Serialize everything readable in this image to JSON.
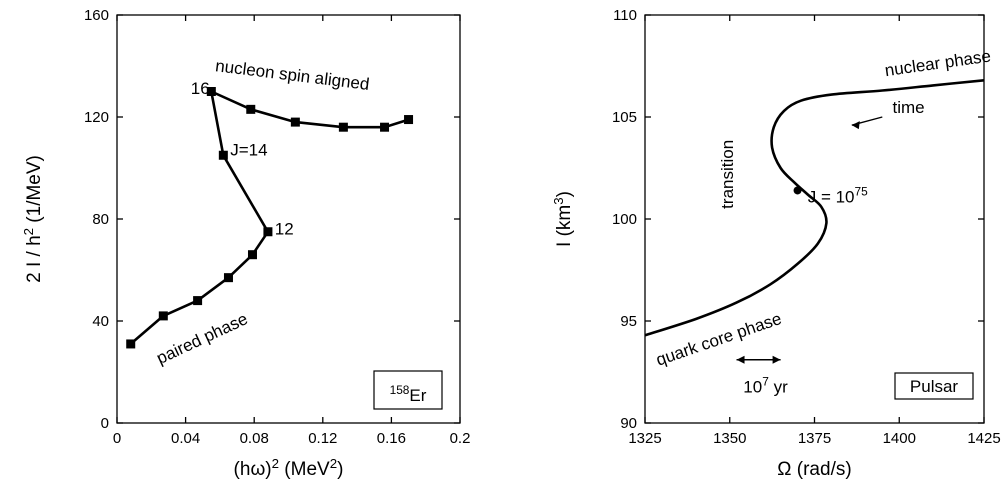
{
  "chart_data": [
    {
      "type": "line",
      "xlabel": "(hω)",
      "xlabel_sup": "2",
      "xlabel_unit": " (MeV",
      "xlabel_unit_sup": "2",
      "xlabel_tail": ")",
      "ylabel": "2 I / h",
      "ylabel_sup": "2",
      "ylabel_unit": " (1/MeV)",
      "xlim": [
        0,
        0.2
      ],
      "ylim": [
        0,
        160
      ],
      "xticks": [
        {
          "value": 0,
          "label": "0"
        },
        {
          "value": 0.04,
          "label": "0.04"
        },
        {
          "value": 0.08,
          "label": "0.08"
        },
        {
          "value": 0.12,
          "label": "0.12"
        },
        {
          "value": 0.16,
          "label": "0.16"
        },
        {
          "value": 0.2,
          "label": "0.2"
        }
      ],
      "yticks": [
        {
          "value": 0,
          "label": "0"
        },
        {
          "value": 40,
          "label": "40"
        },
        {
          "value": 80,
          "label": "80"
        },
        {
          "value": 120,
          "label": "120"
        },
        {
          "value": 160,
          "label": "160"
        }
      ],
      "series": [
        {
          "x": [
            0.008,
            0.027,
            0.047,
            0.065,
            0.079,
            0.088,
            0.062,
            0.055,
            0.078,
            0.104,
            0.132,
            0.156,
            0.17
          ],
          "y": [
            31,
            42,
            48,
            57,
            66,
            75,
            105,
            130,
            123,
            118,
            116,
            116,
            119
          ]
        }
      ],
      "annotations": [
        {
          "text": "16",
          "x": 0.043,
          "y": 129
        },
        {
          "text": "12",
          "x": 0.092,
          "y": 74
        },
        {
          "text": "J=14",
          "x": 0.066,
          "y": 105
        },
        {
          "text": "nucleon spin aligned",
          "x": 0.057,
          "y": 138,
          "rotate": 7
        },
        {
          "text": "paired phase",
          "x": 0.025,
          "y": 23,
          "rotate": -25
        }
      ],
      "box_label": {
        "sup": "158",
        "text": "Er"
      }
    },
    {
      "type": "line",
      "xlabel": "Ω (rad/s)",
      "ylabel": "I (km",
      "ylabel_sup": "3",
      "ylabel_tail": ")",
      "xlim": [
        1325,
        1425
      ],
      "ylim": [
        90,
        110
      ],
      "xticks": [
        {
          "value": 1325,
          "label": "1325"
        },
        {
          "value": 1350,
          "label": "1350"
        },
        {
          "value": 1375,
          "label": "1375"
        },
        {
          "value": 1400,
          "label": "1400"
        },
        {
          "value": 1425,
          "label": "1425"
        }
      ],
      "yticks": [
        {
          "value": 90,
          "label": "90"
        },
        {
          "value": 95,
          "label": "95"
        },
        {
          "value": 100,
          "label": "100"
        },
        {
          "value": 105,
          "label": "105"
        },
        {
          "value": 110,
          "label": "110"
        }
      ],
      "series": [
        {
          "x": [
            1325,
            1340,
            1352,
            1362,
            1370,
            1376,
            1378.5,
            1377,
            1373,
            1369,
            1365,
            1362.5,
            1363,
            1366,
            1371,
            1380,
            1395,
            1410,
            1425
          ],
          "y": [
            94.3,
            95.1,
            95.9,
            96.8,
            97.8,
            98.8,
            99.8,
            100.6,
            101.2,
            101.8,
            102.5,
            103.5,
            104.5,
            105.3,
            105.8,
            106.1,
            106.3,
            106.55,
            106.8
          ]
        }
      ],
      "marker": {
        "x": 1370,
        "y": 101.4
      },
      "annotations": [
        {
          "text": "nuclear phase",
          "x": 1396,
          "y": 107.0,
          "rotate": -8
        },
        {
          "text": "time",
          "x": 1398,
          "y": 105.2
        },
        {
          "text": "transition",
          "x": 1351,
          "y": 100.5,
          "rotate": -90
        },
        {
          "text": "quark core phase",
          "x": 1329,
          "y": 92.8,
          "rotate": -19
        },
        {
          "text": "J = 10",
          "x": 1373,
          "y": 100.8,
          "sup": "75"
        },
        {
          "text": "10",
          "x": 1354,
          "y": 91.5,
          "sup": "7",
          "suffix": " yr"
        }
      ],
      "box_label": {
        "text": "Pulsar"
      }
    }
  ]
}
